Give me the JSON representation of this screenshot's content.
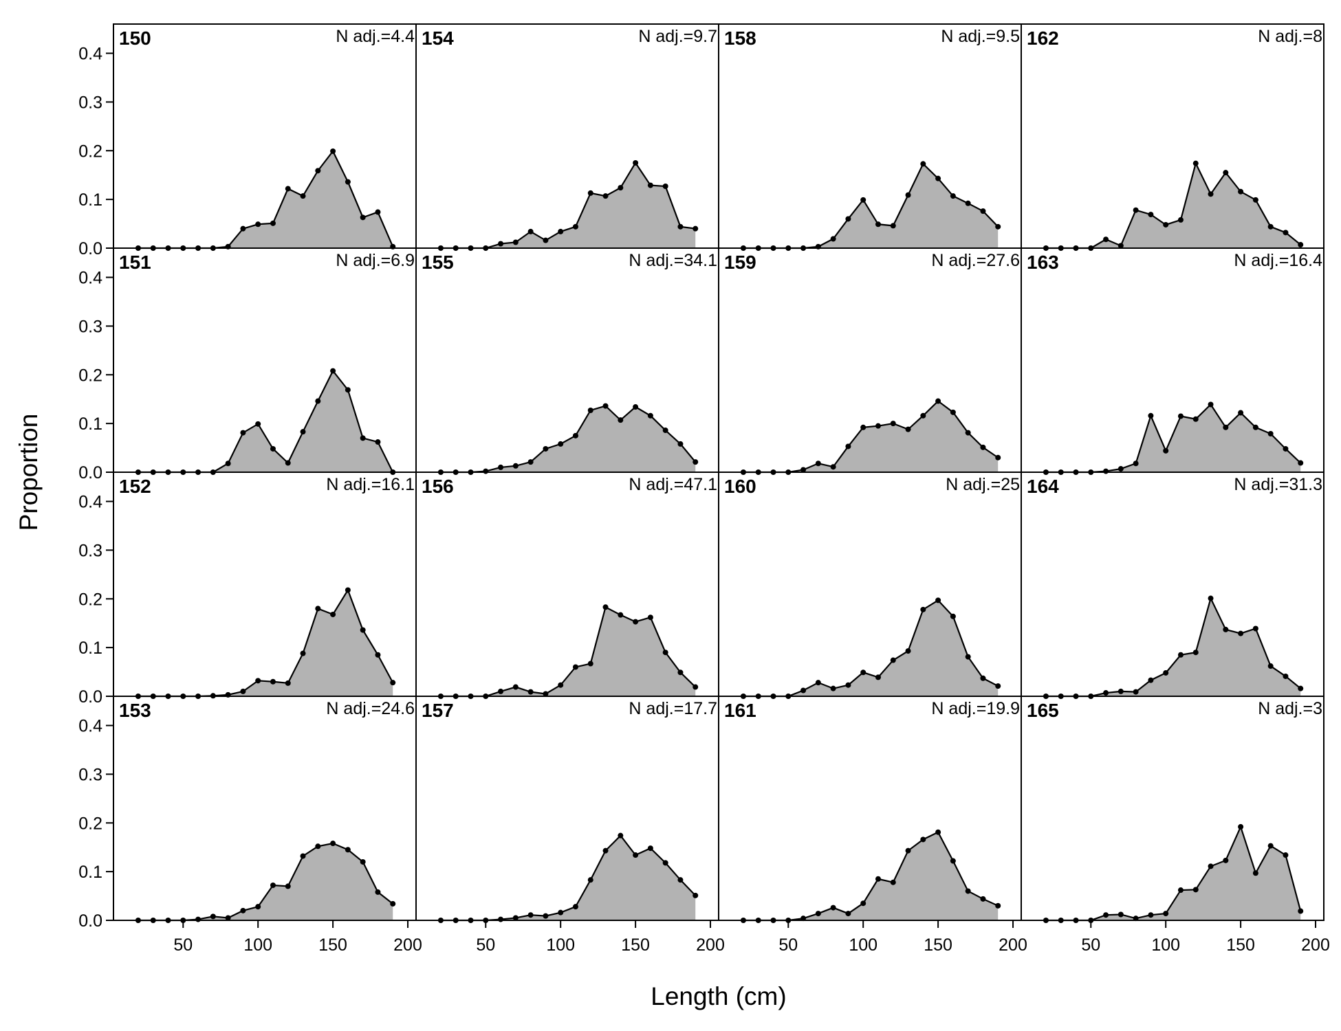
{
  "xlabel": "Length (cm)",
  "ylabel": "Proportion",
  "chart_data": [
    {
      "type": "area",
      "title": "150",
      "annotation": "N adj.=4.4",
      "x": [
        20,
        30,
        40,
        50,
        60,
        70,
        80,
        90,
        100,
        110,
        120,
        130,
        140,
        150,
        160,
        170,
        180,
        190
      ],
      "values": [
        0,
        0,
        0,
        0,
        0,
        0,
        0.003,
        0.04,
        0.049,
        0.051,
        0.122,
        0.107,
        0.159,
        0.199,
        0.136,
        0.063,
        0.074,
        0.003
      ],
      "color": "#b3b3b3",
      "xlim": [
        3.5,
        205.5
      ],
      "ylim": [
        0,
        0.46
      ],
      "yticks": [
        {
          "value": 0,
          "label": "0.0"
        },
        0.1,
        0.2,
        0.3,
        0.4
      ]
    },
    {
      "type": "area",
      "title": "151",
      "annotation": "N adj.=6.9",
      "x": [
        20,
        30,
        40,
        50,
        60,
        70,
        80,
        90,
        100,
        110,
        120,
        130,
        140,
        150,
        160,
        170,
        180,
        190
      ],
      "values": [
        0,
        0,
        0,
        0,
        0,
        0,
        0.018,
        0.081,
        0.099,
        0.048,
        0.019,
        0.083,
        0.146,
        0.208,
        0.169,
        0.07,
        0.062,
        0
      ],
      "color": "#b3b3b3",
      "xlim": [
        3.5,
        205.5
      ],
      "ylim": [
        0,
        0.46
      ],
      "yticks": [
        {
          "value": 0,
          "label": "0.0"
        },
        0.1,
        0.2,
        0.3,
        0.4
      ]
    },
    {
      "type": "area",
      "title": "152",
      "annotation": "N adj.=16.1",
      "x": [
        20,
        30,
        40,
        50,
        60,
        70,
        80,
        90,
        100,
        110,
        120,
        130,
        140,
        150,
        160,
        170,
        180,
        190
      ],
      "values": [
        0,
        0,
        0,
        0,
        0,
        0.001,
        0.003,
        0.01,
        0.032,
        0.03,
        0.027,
        0.088,
        0.18,
        0.168,
        0.218,
        0.136,
        0.085,
        0.028
      ],
      "color": "#b3b3b3",
      "xlim": [
        3.5,
        205.5
      ],
      "ylim": [
        0,
        0.46
      ],
      "yticks": [
        {
          "value": 0,
          "label": "0.0"
        },
        0.1,
        0.2,
        0.3,
        0.4
      ]
    },
    {
      "type": "area",
      "title": "153",
      "annotation": "N adj.=24.6",
      "x": [
        20,
        30,
        40,
        50,
        60,
        70,
        80,
        90,
        100,
        110,
        120,
        130,
        140,
        150,
        160,
        170,
        180,
        190
      ],
      "values": [
        0,
        0,
        0,
        0,
        0.002,
        0.008,
        0.005,
        0.02,
        0.028,
        0.072,
        0.07,
        0.132,
        0.152,
        0.158,
        0.145,
        0.12,
        0.058,
        0.034
      ],
      "color": "#b3b3b3",
      "xlim": [
        3.5,
        205.5
      ],
      "ylim": [
        0,
        0.46
      ],
      "yticks": [
        {
          "value": 0,
          "label": "0.0"
        },
        0.1,
        0.2,
        0.3,
        0.4
      ],
      "xticks": [
        50,
        100,
        150,
        200
      ]
    },
    {
      "type": "area",
      "title": "154",
      "annotation": "N adj.=9.7",
      "x": [
        20,
        30,
        40,
        50,
        60,
        70,
        80,
        90,
        100,
        110,
        120,
        130,
        140,
        150,
        160,
        170,
        180,
        190
      ],
      "values": [
        0,
        0,
        0,
        0,
        0.009,
        0.012,
        0.034,
        0.016,
        0.034,
        0.044,
        0.113,
        0.107,
        0.124,
        0.175,
        0.129,
        0.127,
        0.044,
        0.04
      ],
      "color": "#b3b3b3",
      "xlim": [
        3.5,
        205.5
      ],
      "ylim": [
        0,
        0.46
      ]
    },
    {
      "type": "area",
      "title": "155",
      "annotation": "N adj.=34.1",
      "x": [
        20,
        30,
        40,
        50,
        60,
        70,
        80,
        90,
        100,
        110,
        120,
        130,
        140,
        150,
        160,
        170,
        180,
        190
      ],
      "values": [
        0,
        0,
        0,
        0.002,
        0.01,
        0.013,
        0.021,
        0.048,
        0.058,
        0.075,
        0.127,
        0.136,
        0.107,
        0.134,
        0.116,
        0.086,
        0.058,
        0.021
      ],
      "color": "#b3b3b3",
      "xlim": [
        3.5,
        205.5
      ],
      "ylim": [
        0,
        0.46
      ]
    },
    {
      "type": "area",
      "title": "156",
      "annotation": "N adj.=47.1",
      "x": [
        20,
        30,
        40,
        50,
        60,
        70,
        80,
        90,
        100,
        110,
        120,
        130,
        140,
        150,
        160,
        170,
        180,
        190
      ],
      "values": [
        0,
        0,
        0,
        0,
        0.01,
        0.019,
        0.009,
        0.005,
        0.023,
        0.06,
        0.067,
        0.183,
        0.167,
        0.153,
        0.162,
        0.09,
        0.049,
        0.019
      ],
      "color": "#b3b3b3",
      "xlim": [
        3.5,
        205.5
      ],
      "ylim": [
        0,
        0.46
      ]
    },
    {
      "type": "area",
      "title": "157",
      "annotation": "N adj.=17.7",
      "x": [
        20,
        30,
        40,
        50,
        60,
        70,
        80,
        90,
        100,
        110,
        120,
        130,
        140,
        150,
        160,
        170,
        180,
        190
      ],
      "values": [
        0,
        0,
        0,
        0,
        0.002,
        0.005,
        0.011,
        0.009,
        0.016,
        0.028,
        0.083,
        0.143,
        0.174,
        0.134,
        0.148,
        0.118,
        0.083,
        0.051
      ],
      "color": "#b3b3b3",
      "xlim": [
        3.5,
        205.5
      ],
      "ylim": [
        0,
        0.46
      ],
      "xticks": [
        50,
        100,
        150,
        200
      ]
    },
    {
      "type": "area",
      "title": "158",
      "annotation": "N adj.=9.5",
      "x": [
        20,
        30,
        40,
        50,
        60,
        70,
        80,
        90,
        100,
        110,
        120,
        130,
        140,
        150,
        160,
        170,
        180,
        190
      ],
      "values": [
        0,
        0,
        0,
        0,
        0,
        0.003,
        0.019,
        0.06,
        0.099,
        0.049,
        0.046,
        0.109,
        0.173,
        0.143,
        0.107,
        0.092,
        0.076,
        0.044
      ],
      "color": "#b3b3b3",
      "xlim": [
        3.5,
        205.5
      ],
      "ylim": [
        0,
        0.46
      ]
    },
    {
      "type": "area",
      "title": "159",
      "annotation": "N adj.=27.6",
      "x": [
        20,
        30,
        40,
        50,
        60,
        70,
        80,
        90,
        100,
        110,
        120,
        130,
        140,
        150,
        160,
        170,
        180,
        190
      ],
      "values": [
        0,
        0,
        0,
        0,
        0.005,
        0.018,
        0.011,
        0.053,
        0.092,
        0.095,
        0.1,
        0.088,
        0.116,
        0.146,
        0.123,
        0.081,
        0.051,
        0.03
      ],
      "color": "#b3b3b3",
      "xlim": [
        3.5,
        205.5
      ],
      "ylim": [
        0,
        0.46
      ]
    },
    {
      "type": "area",
      "title": "160",
      "annotation": "N adj.=25",
      "x": [
        20,
        30,
        40,
        50,
        60,
        70,
        80,
        90,
        100,
        110,
        120,
        130,
        140,
        150,
        160,
        170,
        180,
        190
      ],
      "values": [
        0,
        0,
        0,
        0,
        0.012,
        0.028,
        0.016,
        0.023,
        0.049,
        0.039,
        0.074,
        0.093,
        0.178,
        0.197,
        0.164,
        0.081,
        0.037,
        0.021
      ],
      "color": "#b3b3b3",
      "xlim": [
        3.5,
        205.5
      ],
      "ylim": [
        0,
        0.46
      ]
    },
    {
      "type": "area",
      "title": "161",
      "annotation": "N adj.=19.9",
      "x": [
        20,
        30,
        40,
        50,
        60,
        70,
        80,
        90,
        100,
        110,
        120,
        130,
        140,
        150,
        160,
        170,
        180,
        190
      ],
      "values": [
        0,
        0,
        0,
        0,
        0.004,
        0.014,
        0.026,
        0.014,
        0.035,
        0.085,
        0.078,
        0.143,
        0.166,
        0.181,
        0.122,
        0.06,
        0.044,
        0.03
      ],
      "color": "#b3b3b3",
      "xlim": [
        3.5,
        205.5
      ],
      "ylim": [
        0,
        0.46
      ],
      "xticks": [
        50,
        100,
        150,
        200
      ]
    },
    {
      "type": "area",
      "title": "162",
      "annotation": "N adj.=8",
      "x": [
        20,
        30,
        40,
        50,
        60,
        70,
        80,
        90,
        100,
        110,
        120,
        130,
        140,
        150,
        160,
        170,
        180,
        190
      ],
      "values": [
        0,
        0,
        0,
        0,
        0.018,
        0.005,
        0.078,
        0.069,
        0.048,
        0.058,
        0.174,
        0.111,
        0.155,
        0.116,
        0.099,
        0.044,
        0.032,
        0.007
      ],
      "color": "#b3b3b3",
      "xlim": [
        3.5,
        205.5
      ],
      "ylim": [
        0,
        0.46
      ]
    },
    {
      "type": "area",
      "title": "163",
      "annotation": "N adj.=16.4",
      "x": [
        20,
        30,
        40,
        50,
        60,
        70,
        80,
        90,
        100,
        110,
        120,
        130,
        140,
        150,
        160,
        170,
        180,
        190
      ],
      "values": [
        0,
        0,
        0,
        0,
        0.002,
        0.007,
        0.018,
        0.116,
        0.044,
        0.115,
        0.109,
        0.139,
        0.092,
        0.122,
        0.092,
        0.079,
        0.048,
        0.019
      ],
      "color": "#b3b3b3",
      "xlim": [
        3.5,
        205.5
      ],
      "ylim": [
        0,
        0.46
      ]
    },
    {
      "type": "area",
      "title": "164",
      "annotation": "N adj.=31.3",
      "x": [
        20,
        30,
        40,
        50,
        60,
        70,
        80,
        90,
        100,
        110,
        120,
        130,
        140,
        150,
        160,
        170,
        180,
        190
      ],
      "values": [
        0,
        0,
        0,
        0,
        0.007,
        0.01,
        0.009,
        0.033,
        0.048,
        0.085,
        0.09,
        0.201,
        0.137,
        0.129,
        0.139,
        0.062,
        0.041,
        0.016
      ],
      "color": "#b3b3b3",
      "xlim": [
        3.5,
        205.5
      ],
      "ylim": [
        0,
        0.46
      ]
    },
    {
      "type": "area",
      "title": "165",
      "annotation": "N adj.=3",
      "x": [
        20,
        30,
        40,
        50,
        60,
        70,
        80,
        90,
        100,
        110,
        120,
        130,
        140,
        150,
        160,
        170,
        180,
        190
      ],
      "values": [
        0,
        0,
        0,
        0,
        0.011,
        0.012,
        0.004,
        0.011,
        0.014,
        0.062,
        0.063,
        0.111,
        0.123,
        0.192,
        0.097,
        0.153,
        0.134,
        0.019
      ],
      "color": "#b3b3b3",
      "xlim": [
        3.5,
        205.5
      ],
      "ylim": [
        0,
        0.46
      ],
      "xticks": [
        50,
        100,
        150,
        200
      ]
    }
  ]
}
